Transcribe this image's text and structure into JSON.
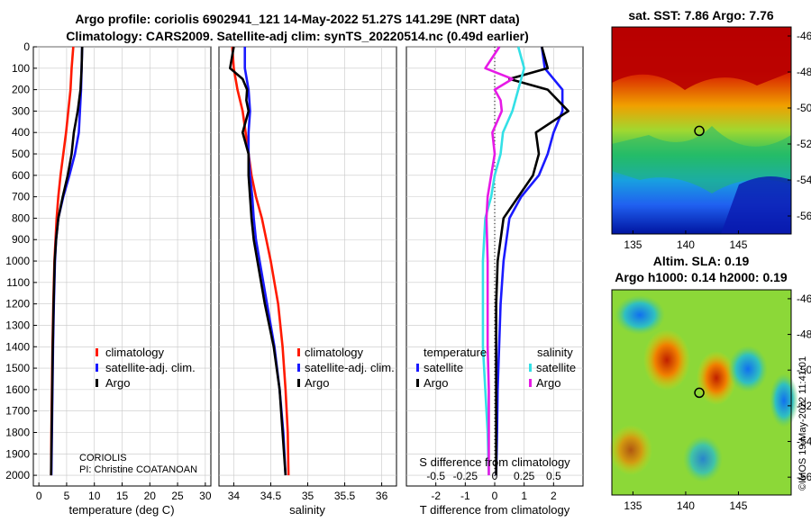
{
  "header": {
    "line1": "Argo profile: coriolis 6902941_121 14-May-2022 51.27S 141.29E (NRT data)",
    "line2": "Climatology: CARS2009. Satellite-adj clim: synTS_20220514.nc (0.49d earlier)"
  },
  "credit": "©IMOS 19-May-2022 11:41:01",
  "colors": {
    "argo": "#000000",
    "clim": "#ff1a00",
    "sat": "#1a1aff",
    "s_sat": "#33e0e6",
    "s_argo": "#e61ae6"
  },
  "chart_data": [
    {
      "type": "line",
      "title": "",
      "xlabel": "temperature (deg C)",
      "ylabel": "",
      "xlim": [
        -1,
        31
      ],
      "ylim": [
        2050,
        0
      ],
      "xticks": [
        "0",
        "5",
        "10",
        "15",
        "20",
        "25",
        "30"
      ],
      "yticks": [
        "0",
        "100",
        "200",
        "300",
        "400",
        "500",
        "600",
        "700",
        "800",
        "900",
        "1000",
        "1100",
        "1200",
        "1300",
        "1400",
        "1500",
        "1600",
        "1700",
        "1800",
        "1900",
        "2000"
      ],
      "legend": [
        "climatology",
        "satellite-adj. clim.",
        "Argo"
      ],
      "annotation": [
        "CORIOLIS",
        "PI: Christine COATANOAN"
      ],
      "series": [
        {
          "name": "climatology",
          "depth": [
            0,
            100,
            200,
            300,
            400,
            500,
            600,
            700,
            800,
            900,
            1000,
            1200,
            1400,
            1600,
            1800,
            2000
          ],
          "values": [
            6.2,
            5.9,
            5.7,
            5.3,
            4.9,
            4.4,
            3.9,
            3.5,
            3.2,
            3.0,
            2.8,
            2.6,
            2.45,
            2.35,
            2.25,
            2.2
          ]
        },
        {
          "name": "satellite-adj. clim.",
          "depth": [
            0,
            100,
            200,
            300,
            400,
            500,
            600,
            700,
            800,
            900,
            1000,
            1200,
            1400,
            1600,
            1800,
            2000
          ],
          "values": [
            7.8,
            7.7,
            7.6,
            7.4,
            7.2,
            6.5,
            5.5,
            4.4,
            3.5,
            3.1,
            2.9,
            2.7,
            2.55,
            2.45,
            2.35,
            2.25
          ]
        },
        {
          "name": "Argo",
          "depth": [
            0,
            100,
            200,
            300,
            400,
            500,
            600,
            700,
            800,
            900,
            1000,
            1200,
            1400,
            1600,
            1800,
            2000
          ],
          "values": [
            7.8,
            7.7,
            7.5,
            7.0,
            6.3,
            5.9,
            5.2,
            4.3,
            3.5,
            3.1,
            2.85,
            2.65,
            2.5,
            2.4,
            2.3,
            2.2
          ]
        }
      ]
    },
    {
      "type": "line",
      "title": "",
      "xlabel": "salinity",
      "ylabel": "",
      "xlim": [
        33.8,
        36.2
      ],
      "ylim": [
        2050,
        0
      ],
      "xticks": [
        "34",
        "34.5",
        "35",
        "35.5",
        "36"
      ],
      "legend": [
        "climatology",
        "satellite-adj. clim.",
        "Argo"
      ],
      "series": [
        {
          "name": "climatology",
          "depth": [
            0,
            100,
            200,
            300,
            400,
            500,
            600,
            700,
            800,
            900,
            1000,
            1200,
            1400,
            1600,
            1800,
            2000
          ],
          "values": [
            33.98,
            34.0,
            34.05,
            34.12,
            34.16,
            34.2,
            34.24,
            34.3,
            34.38,
            34.44,
            34.5,
            34.6,
            34.66,
            34.7,
            34.73,
            34.74
          ]
        },
        {
          "name": "satellite-adj. clim.",
          "depth": [
            0,
            100,
            200,
            300,
            400,
            500,
            600,
            700,
            800,
            900,
            1000,
            1200,
            1400,
            1600,
            1800,
            2000
          ],
          "values": [
            34.15,
            34.15,
            34.2,
            34.22,
            34.2,
            34.2,
            34.22,
            34.25,
            34.27,
            34.3,
            34.35,
            34.45,
            34.55,
            34.62,
            34.67,
            34.7
          ]
        },
        {
          "name": "Argo",
          "depth": [
            0,
            100,
            150,
            200,
            250,
            300,
            400,
            500,
            600,
            700,
            800,
            900,
            1000,
            1200,
            1400,
            1600,
            1800,
            2000
          ],
          "values": [
            34.0,
            33.95,
            34.12,
            34.18,
            34.17,
            34.2,
            34.12,
            34.2,
            34.2,
            34.22,
            34.24,
            34.27,
            34.32,
            34.42,
            34.54,
            34.62,
            34.66,
            34.7
          ]
        }
      ]
    },
    {
      "type": "line",
      "title": "",
      "xlabel": "T difference from climatology",
      "xlabel2": "S difference from climatology",
      "xlim": [
        -3,
        3
      ],
      "ylim": [
        2050,
        0
      ],
      "xticks": [
        "-2",
        "-1",
        "0",
        "1",
        "2"
      ],
      "xticks2": [
        "-0.5",
        "-0.25",
        "0",
        "0.25",
        "0.5"
      ],
      "legend_left_title": "temperature",
      "legend_right_title": "salinity",
      "legend_left": [
        "satellite",
        "Argo"
      ],
      "legend_right": [
        "satellite",
        "Argo"
      ],
      "series": [
        {
          "name": "temperature satellite",
          "depth": [
            0,
            100,
            200,
            300,
            400,
            500,
            600,
            700,
            800,
            1000,
            1200,
            1400,
            1600,
            1800,
            2000
          ],
          "values": [
            1.6,
            1.7,
            2.3,
            2.3,
            2.0,
            1.8,
            1.5,
            0.9,
            0.5,
            0.3,
            0.2,
            0.15,
            0.1,
            0.08,
            0.05
          ]
        },
        {
          "name": "temperature Argo",
          "depth": [
            0,
            100,
            150,
            200,
            300,
            400,
            500,
            600,
            700,
            800,
            1000,
            1200,
            1400,
            1600,
            1800,
            2000
          ],
          "values": [
            1.6,
            1.8,
            0.5,
            1.8,
            2.5,
            1.4,
            1.5,
            1.3,
            0.8,
            0.3,
            0.1,
            0.05,
            0.05,
            0.05,
            0.05,
            0.05
          ]
        },
        {
          "name": "salinity satellite",
          "depth": [
            0,
            100,
            200,
            300,
            400,
            500,
            600,
            700,
            800,
            1000,
            1200,
            1400,
            1600,
            1800,
            2000
          ],
          "values": [
            0.2,
            0.25,
            0.2,
            0.15,
            0.07,
            0.05,
            0.0,
            -0.03,
            -0.08,
            -0.1,
            -0.1,
            -0.1,
            -0.08,
            -0.06,
            -0.05
          ]
        },
        {
          "name": "salinity Argo",
          "depth": [
            0,
            100,
            150,
            200,
            250,
            300,
            400,
            500,
            600,
            700,
            800,
            1000,
            1200,
            1400,
            1600,
            1800,
            2000
          ],
          "values": [
            0.04,
            -0.08,
            0.15,
            0.0,
            0.05,
            0.06,
            -0.02,
            0.0,
            -0.03,
            -0.06,
            -0.07,
            -0.06,
            -0.06,
            -0.06,
            -0.05,
            -0.05,
            -0.05
          ]
        }
      ]
    },
    {
      "type": "heatmap",
      "title": "sat. SST: 7.86 Argo: 7.76",
      "xlim": [
        133,
        150
      ],
      "ylim": [
        -57,
        -45.5
      ],
      "xticks": [
        "135",
        "140",
        "145"
      ],
      "yticks": [
        "-46",
        "-48",
        "-50",
        "-52",
        "-54",
        "-56"
      ],
      "marker": {
        "lon": 141.29,
        "lat": -51.27
      }
    },
    {
      "type": "heatmap",
      "title": "Altim. SLA: 0.19",
      "subtitle": "Argo h1000: 0.14 h2000: 0.19",
      "xlim": [
        133,
        150
      ],
      "ylim": [
        -57,
        -45.5
      ],
      "xticks": [
        "135",
        "140",
        "145"
      ],
      "yticks": [
        "-46",
        "-48",
        "-50",
        "-52",
        "-54",
        "-56"
      ],
      "marker": {
        "lon": 141.29,
        "lat": -51.27
      }
    }
  ]
}
